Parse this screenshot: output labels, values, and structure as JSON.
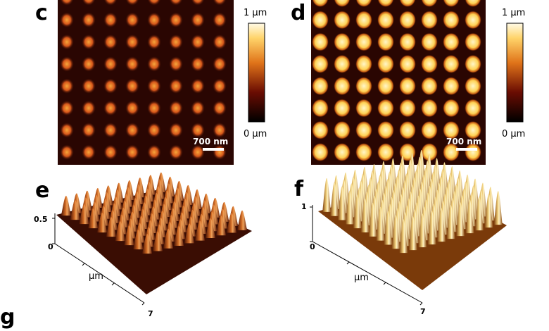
{
  "panels": [
    {
      "label": "c",
      "colorbar_max": "1 µm",
      "colorbar_min": "0 µm",
      "scalebar": "700 nm"
    },
    {
      "label": "d",
      "colorbar_max": "1 µm",
      "colorbar_min": "0 µm",
      "scalebar": "700 nm"
    },
    {
      "label": "e",
      "z_top": "0.5",
      "z_zero": "0",
      "axis_unit": "µm",
      "axis_end": "7"
    },
    {
      "label": "f",
      "z_top": "1",
      "z_zero": "0",
      "axis_unit": "µm",
      "axis_end": "7"
    },
    {
      "label": "g"
    }
  ]
}
